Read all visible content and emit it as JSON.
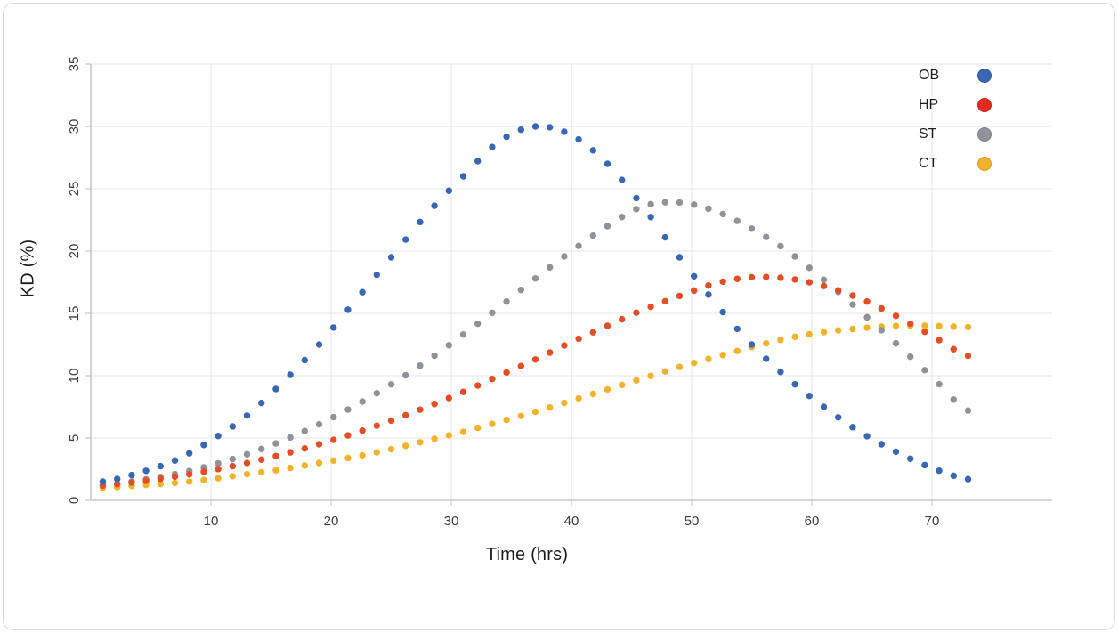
{
  "chart_data": {
    "type": "scatter",
    "style": "dotted-curves",
    "title": "",
    "xlabel": "Time (hrs)",
    "ylabel": "KD (%)",
    "xlim": [
      0,
      80
    ],
    "ylim": [
      0,
      35
    ],
    "x_ticks": [
      10,
      20,
      30,
      40,
      50,
      60,
      70
    ],
    "y_ticks": [
      0,
      5,
      10,
      15,
      20,
      25,
      30,
      35
    ],
    "grid": true,
    "legend_position": "top-right",
    "dot_interval_hours": 1.2,
    "dot_radius": 3.7,
    "colors": {
      "grid": "#e4e4e4",
      "axis": "#bdbdbd",
      "tick_text": "#3d3d3d"
    },
    "x": [
      1,
      4,
      7,
      10,
      13,
      16,
      19,
      22,
      25,
      28,
      31,
      34,
      37,
      40,
      43,
      46,
      49,
      52,
      55,
      58,
      61,
      64,
      67,
      70,
      73
    ],
    "series": [
      {
        "name": "OB",
        "color": "#3a67b1",
        "values": [
          1.5,
          2.2,
          3.2,
          4.8,
          6.8,
          9.5,
          12.5,
          16,
          19.5,
          23,
          26,
          28.8,
          30,
          29.3,
          27,
          23.5,
          19.5,
          15.8,
          12.5,
          9.8,
          7.5,
          5.5,
          3.9,
          2.6,
          1.7
        ]
      },
      {
        "name": "HP",
        "color": "#e44d26",
        "legend_color": "#e02c1e",
        "values": [
          1.2,
          1.5,
          1.9,
          2.4,
          3,
          3.7,
          4.5,
          5.4,
          6.4,
          7.5,
          8.7,
          10,
          11.3,
          12.7,
          14,
          15.3,
          16.4,
          17.4,
          17.9,
          17.8,
          17.2,
          16.2,
          14.8,
          13.2,
          11.6
        ]
      },
      {
        "name": "ST",
        "color": "#8f9296",
        "values": [
          1.2,
          1.6,
          2.1,
          2.8,
          3.7,
          4.8,
          6.1,
          7.6,
          9.3,
          11.2,
          13.3,
          15.5,
          17.8,
          20,
          22,
          23.6,
          23.9,
          23.2,
          21.8,
          20,
          17.7,
          15.2,
          12.6,
          9.9,
          7.2
        ]
      },
      {
        "name": "CT",
        "color": "#f2b32c",
        "values": [
          1,
          1.2,
          1.4,
          1.7,
          2.1,
          2.5,
          3,
          3.5,
          4.1,
          4.8,
          5.5,
          6.3,
          7.1,
          8,
          8.9,
          9.8,
          10.7,
          11.5,
          12.3,
          13,
          13.5,
          13.8,
          14,
          14,
          13.9
        ]
      }
    ]
  }
}
